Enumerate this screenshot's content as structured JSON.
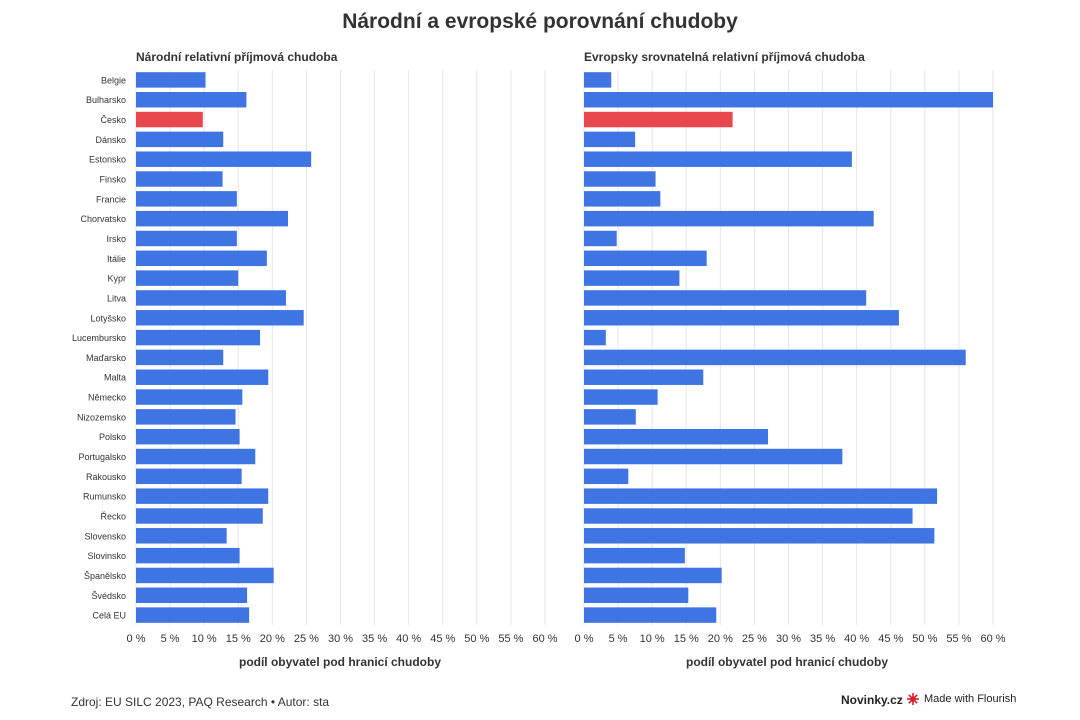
{
  "title": "Národní a evropské porovnání chudoby",
  "footer": {
    "source": "Zdroj: EU SILC 2023, PAQ Research • Autor: sta",
    "brand": "Novinky.cz",
    "flourish": "Made with Flourish"
  },
  "colors": {
    "bar": "#3f75e3",
    "highlight": "#e8484b",
    "grid": "#e6e6e6",
    "text": "#333333",
    "flourish_icon": "#d8232a"
  },
  "chart_data": [
    {
      "type": "bar",
      "orientation": "horizontal",
      "title": "Národní relativní příjmová chudoba",
      "xlabel": "podíl obyvatel pod hranicí chudoby",
      "xlim": [
        0,
        60
      ],
      "xticks": [
        "0 %",
        "5 %",
        "10 %",
        "15 %",
        "20 %",
        "25 %",
        "30 %",
        "35 %",
        "40 %",
        "45 %",
        "50 %",
        "55 %",
        "60 %"
      ],
      "categories": [
        "Belgie",
        "Bulharsko",
        "Česko",
        "Dánsko",
        "Estonsko",
        "Finsko",
        "Francie",
        "Chorvatsko",
        "Irsko",
        "Itálie",
        "Kypr",
        "Litva",
        "Lotyšsko",
        "Lucembursko",
        "Maďarsko",
        "Malta",
        "Německo",
        "Nizozemsko",
        "Polsko",
        "Portugalsko",
        "Rakousko",
        "Rumunsko",
        "Řecko",
        "Slovensko",
        "Slovinsko",
        "Španělsko",
        "Švédsko",
        "Celá EU"
      ],
      "values": [
        10.2,
        16.2,
        9.8,
        12.8,
        25.7,
        12.7,
        14.8,
        22.3,
        14.8,
        19.2,
        15.0,
        22.0,
        24.6,
        18.2,
        12.8,
        19.4,
        15.6,
        14.6,
        15.2,
        17.5,
        15.5,
        19.4,
        18.6,
        13.3,
        15.2,
        20.2,
        16.3,
        16.6
      ],
      "highlight": "Česko"
    },
    {
      "type": "bar",
      "orientation": "horizontal",
      "title": "Evropsky srovnatelná relativní příjmová chudoba",
      "xlabel": "podíl obyvatel pod hranicí chudoby",
      "xlim": [
        0,
        60
      ],
      "xticks": [
        "0 %",
        "5 %",
        "10 %",
        "15 %",
        "20 %",
        "25 %",
        "30 %",
        "35 %",
        "40 %",
        "45 %",
        "50 %",
        "55 %",
        "60 %"
      ],
      "categories": [
        "Belgie",
        "Bulharsko",
        "Česko",
        "Dánsko",
        "Estonsko",
        "Finsko",
        "Francie",
        "Chorvatsko",
        "Irsko",
        "Itálie",
        "Kypr",
        "Litva",
        "Lotyšsko",
        "Lucembursko",
        "Maďarsko",
        "Malta",
        "Německo",
        "Nizozemsko",
        "Polsko",
        "Portugalsko",
        "Rakousko",
        "Rumunsko",
        "Řecko",
        "Slovensko",
        "Slovinsko",
        "Španělsko",
        "Švédsko",
        "Celá EU"
      ],
      "values": [
        4.0,
        60.0,
        21.8,
        7.5,
        39.3,
        10.5,
        11.2,
        42.5,
        4.8,
        18.0,
        14.0,
        41.4,
        46.2,
        3.2,
        56.0,
        17.5,
        10.8,
        7.6,
        27.0,
        37.9,
        6.5,
        51.8,
        48.2,
        51.4,
        14.8,
        20.2,
        15.3,
        19.4
      ],
      "highlight": "Česko"
    }
  ]
}
